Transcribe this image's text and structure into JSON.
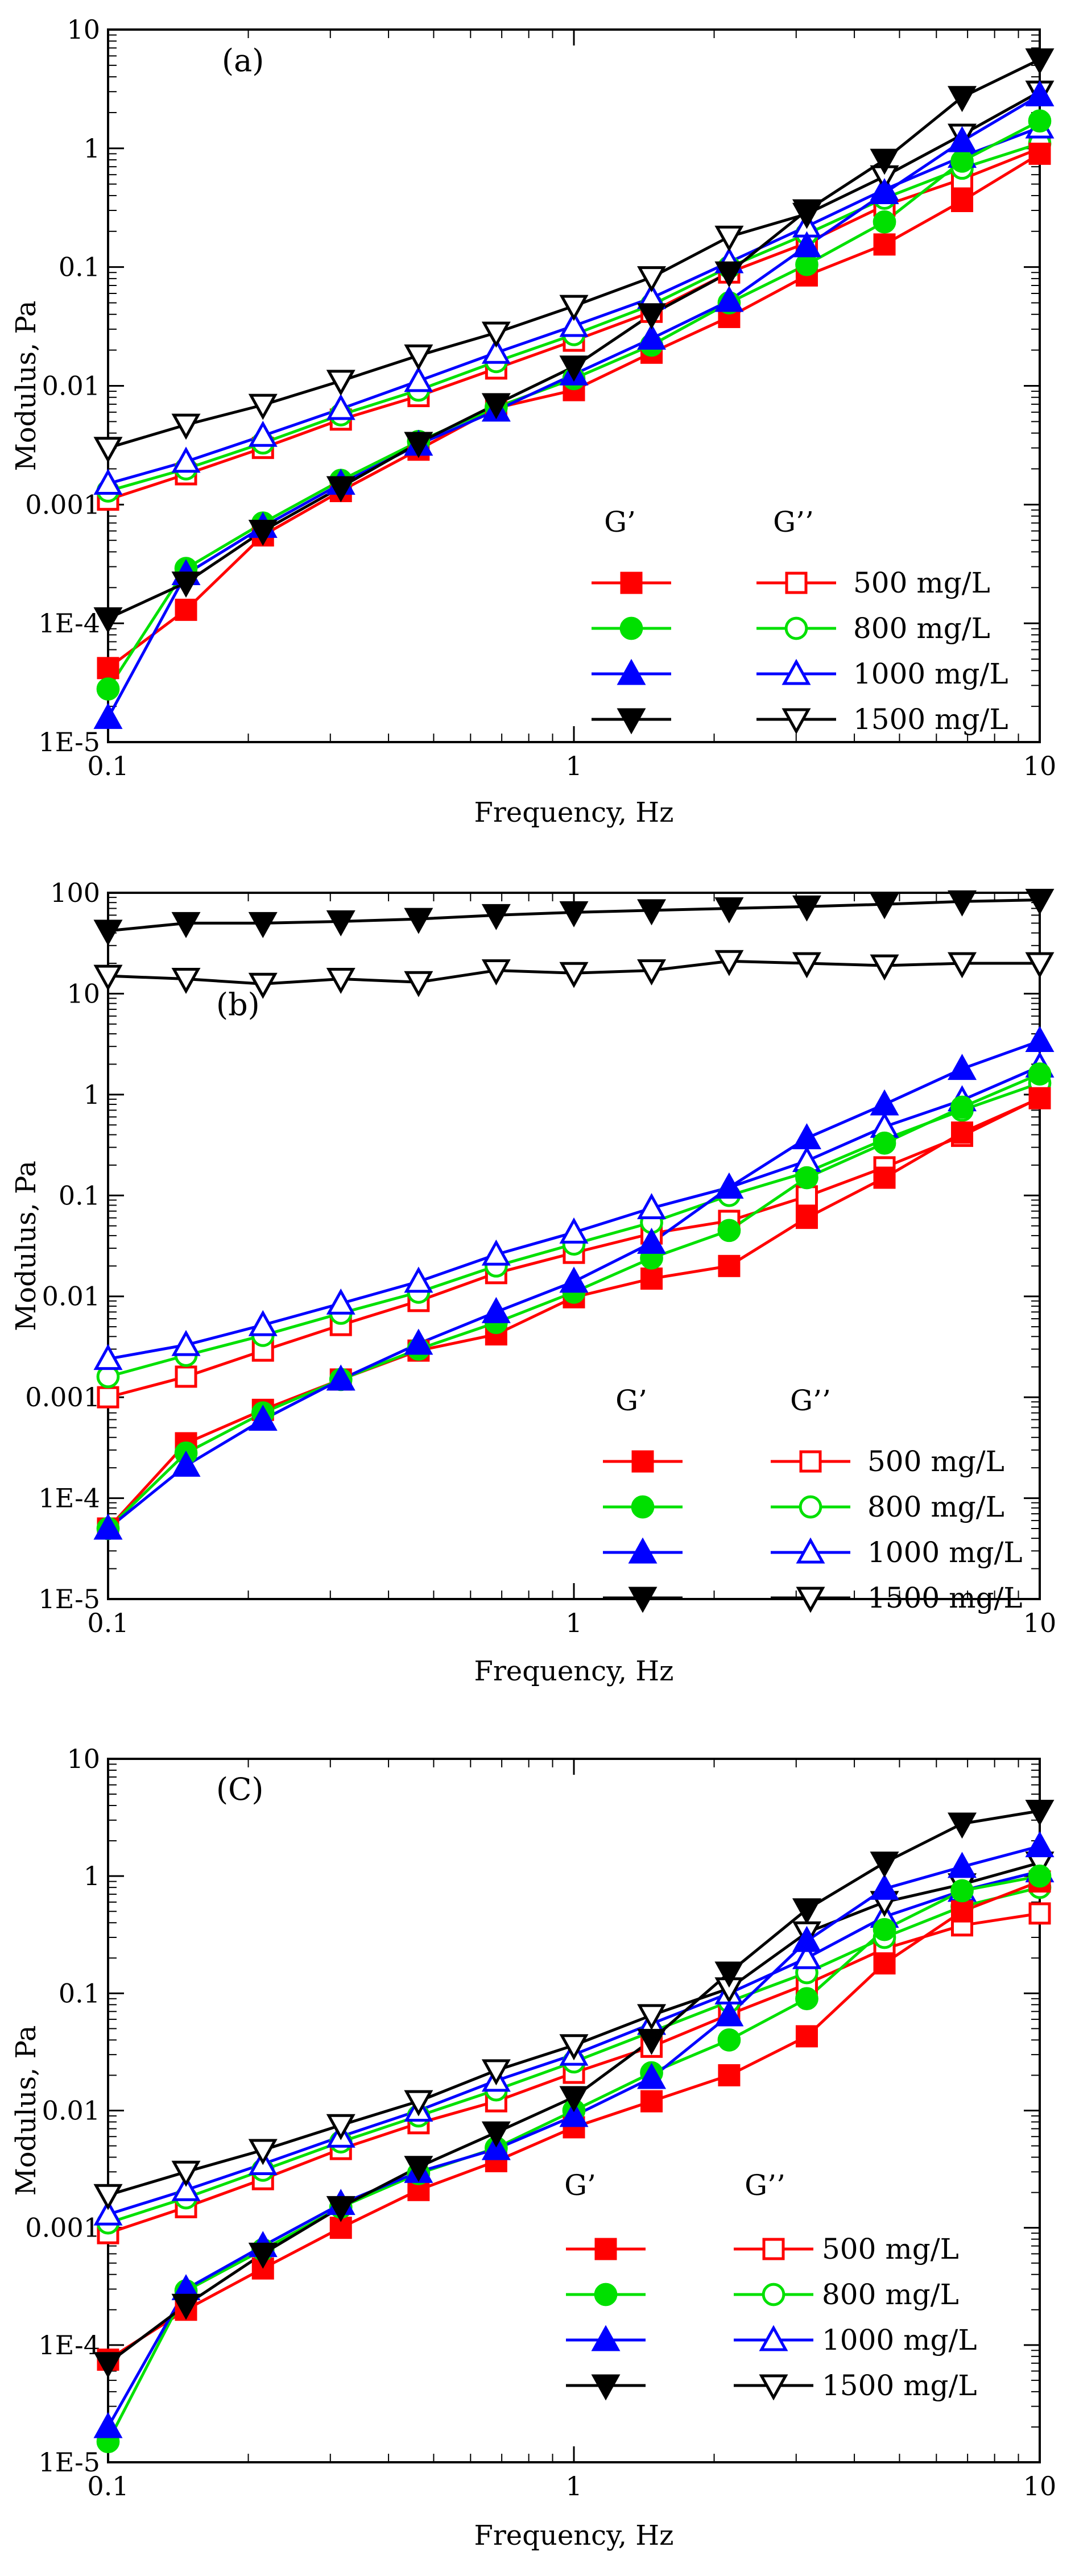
{
  "chart_data": [
    {
      "type": "line",
      "panel_label": "(a)",
      "xscale": "log",
      "yscale": "log",
      "xlabel": "Frequency, Hz",
      "ylabel": "Modulus, Pa",
      "xlim": [
        0.1,
        10
      ],
      "ylim": [
        1e-05,
        10
      ],
      "xticks": [
        0.1,
        1,
        10
      ],
      "xtick_labels": [
        "0.1",
        "1",
        "10"
      ],
      "yticks": [
        1e-05,
        0.0001,
        0.001,
        0.01,
        0.1,
        1,
        10
      ],
      "ytick_labels": [
        "1E-5",
        "1E-4",
        "0.001",
        "0.01",
        "0.1",
        "1",
        "10"
      ],
      "legend_headers": [
        "G’",
        "G’’"
      ],
      "legend_location": "lower-right",
      "x": [
        0.1,
        0.147,
        0.215,
        0.316,
        0.464,
        0.681,
        1.0,
        1.468,
        2.154,
        3.162,
        4.642,
        6.813,
        10.0
      ],
      "series": [
        {
          "name": "500 mg/L",
          "modulus": "G’",
          "color": "#ff0000",
          "marker": "square",
          "filled": true,
          "values": [
            4.2e-05,
            0.00013,
            0.00055,
            0.0013,
            0.0029,
            0.0065,
            0.0092,
            0.019,
            0.038,
            0.085,
            0.155,
            0.36,
            0.9
          ]
        },
        {
          "name": "800 mg/L",
          "modulus": "G’",
          "color": "#00e000",
          "marker": "circle",
          "filled": true,
          "values": [
            2.8e-05,
            0.00029,
            0.0007,
            0.0016,
            0.0034,
            0.0066,
            0.0115,
            0.022,
            0.05,
            0.105,
            0.24,
            0.78,
            1.7
          ]
        },
        {
          "name": "1000 mg/L",
          "modulus": "G’",
          "color": "#0000ff",
          "marker": "triangle-up",
          "filled": true,
          "values": [
            1.6e-05,
            0.00026,
            0.00065,
            0.0015,
            0.0032,
            0.0062,
            0.0125,
            0.025,
            0.052,
            0.15,
            0.42,
            1.15,
            2.8
          ]
        },
        {
          "name": "1500 mg/L",
          "modulus": "G’",
          "color": "#000000",
          "marker": "triangle-down",
          "filled": true,
          "values": [
            0.00011,
            0.00022,
            0.0006,
            0.0014,
            0.0033,
            0.007,
            0.0145,
            0.04,
            0.09,
            0.3,
            0.8,
            2.7,
            5.6
          ]
        },
        {
          "name": "500 mg/L",
          "modulus": "G’’",
          "color": "#ff0000",
          "marker": "square",
          "filled": false,
          "values": [
            0.0011,
            0.0018,
            0.003,
            0.0052,
            0.0082,
            0.014,
            0.024,
            0.042,
            0.09,
            0.16,
            0.33,
            0.55,
            1.0
          ]
        },
        {
          "name": "800 mg/L",
          "modulus": "G’’",
          "color": "#00e000",
          "marker": "circle",
          "filled": false,
          "values": [
            0.0013,
            0.002,
            0.0033,
            0.0057,
            0.0092,
            0.016,
            0.027,
            0.048,
            0.1,
            0.19,
            0.38,
            0.68,
            1.1
          ]
        },
        {
          "name": "1000 mg/L",
          "modulus": "G’’",
          "color": "#0000ff",
          "marker": "triangle-up",
          "filled": false,
          "values": [
            0.0015,
            0.0023,
            0.0038,
            0.0064,
            0.011,
            0.019,
            0.032,
            0.055,
            0.11,
            0.22,
            0.45,
            0.85,
            1.5
          ]
        },
        {
          "name": "1500 mg/L",
          "modulus": "G’’",
          "color": "#000000",
          "marker": "triangle-down",
          "filled": false,
          "values": [
            0.003,
            0.0047,
            0.0069,
            0.011,
            0.018,
            0.028,
            0.047,
            0.082,
            0.18,
            0.28,
            0.58,
            1.3,
            3.0
          ]
        }
      ]
    },
    {
      "type": "line",
      "panel_label": "(b)",
      "xscale": "log",
      "yscale": "log",
      "xlabel": "Frequency, Hz",
      "ylabel": "Modulus, Pa",
      "xlim": [
        0.1,
        10
      ],
      "ylim": [
        1e-05,
        100
      ],
      "xticks": [
        0.1,
        1,
        10
      ],
      "xtick_labels": [
        "0.1",
        "1",
        "10"
      ],
      "yticks": [
        1e-05,
        0.0001,
        0.001,
        0.01,
        0.1,
        1,
        10,
        100
      ],
      "ytick_labels": [
        "1E-5",
        "1E-4",
        "0.001",
        "0.01",
        "0.1",
        "1",
        "10",
        "100"
      ],
      "legend_headers": [
        "G’",
        "G’’"
      ],
      "legend_location": "lower-right",
      "x": [
        0.1,
        0.147,
        0.215,
        0.316,
        0.464,
        0.681,
        1.0,
        1.468,
        2.154,
        3.162,
        4.642,
        6.813,
        10.0
      ],
      "series": [
        {
          "name": "500 mg/L",
          "modulus": "G’",
          "color": "#ff0000",
          "marker": "square",
          "filled": true,
          "values": [
            5e-05,
            0.00035,
            0.00075,
            0.0015,
            0.0029,
            0.0042,
            0.0098,
            0.015,
            0.02,
            0.06,
            0.15,
            0.42,
            0.92
          ]
        },
        {
          "name": "800 mg/L",
          "modulus": "G’",
          "color": "#00e000",
          "marker": "circle",
          "filled": true,
          "values": [
            5e-05,
            0.00028,
            0.0007,
            0.0015,
            0.003,
            0.0055,
            0.011,
            0.024,
            0.045,
            0.15,
            0.33,
            0.75,
            1.6
          ]
        },
        {
          "name": "1000 mg/L",
          "modulus": "G’",
          "color": "#0000ff",
          "marker": "triangle-up",
          "filled": true,
          "values": [
            5e-05,
            0.00021,
            0.0006,
            0.0015,
            0.0034,
            0.007,
            0.014,
            0.034,
            0.12,
            0.37,
            0.8,
            1.8,
            3.4
          ]
        },
        {
          "name": "1500 mg/L",
          "modulus": "G’",
          "color": "#000000",
          "marker": "triangle-down",
          "filled": true,
          "values": [
            42,
            50,
            50,
            52,
            55,
            60,
            64,
            67,
            70,
            73,
            77,
            82,
            85
          ]
        },
        {
          "name": "500 mg/L",
          "modulus": "G’’",
          "color": "#ff0000",
          "marker": "square",
          "filled": false,
          "values": [
            0.001,
            0.0016,
            0.0029,
            0.0052,
            0.009,
            0.017,
            0.027,
            0.042,
            0.056,
            0.098,
            0.19,
            0.39,
            0.93
          ]
        },
        {
          "name": "800 mg/L",
          "modulus": "G’’",
          "color": "#00e000",
          "marker": "circle",
          "filled": false,
          "values": [
            0.0016,
            0.0026,
            0.0041,
            0.0068,
            0.011,
            0.02,
            0.033,
            0.054,
            0.1,
            0.17,
            0.36,
            0.7,
            1.3
          ]
        },
        {
          "name": "1000 mg/L",
          "modulus": "G’’",
          "color": "#0000ff",
          "marker": "triangle-up",
          "filled": false,
          "values": [
            0.0024,
            0.0033,
            0.0052,
            0.0085,
            0.014,
            0.026,
            0.043,
            0.075,
            0.12,
            0.22,
            0.48,
            0.88,
            1.9
          ]
        },
        {
          "name": "1500 mg/L",
          "modulus": "G’’",
          "color": "#000000",
          "marker": "triangle-down",
          "filled": false,
          "values": [
            15,
            14,
            12.5,
            14,
            13,
            17,
            16,
            17,
            21,
            20,
            19,
            20,
            20
          ]
        }
      ]
    },
    {
      "type": "line",
      "panel_label": "(C)",
      "xscale": "log",
      "yscale": "log",
      "xlabel": "Frequency, Hz",
      "ylabel": "Modulus, Pa",
      "xlim": [
        0.1,
        10
      ],
      "ylim": [
        1e-05,
        10
      ],
      "xticks": [
        0.1,
        1,
        10
      ],
      "xtick_labels": [
        "0.1",
        "1",
        "10"
      ],
      "yticks": [
        1e-05,
        0.0001,
        0.001,
        0.01,
        0.1,
        1,
        10
      ],
      "ytick_labels": [
        "1E-5",
        "1E-4",
        "0.001",
        "0.01",
        "0.1",
        "1",
        "10"
      ],
      "legend_headers": [
        "G’",
        "G’’"
      ],
      "legend_location": "lower-right",
      "x": [
        0.1,
        0.147,
        0.215,
        0.316,
        0.464,
        0.681,
        1.0,
        1.468,
        2.154,
        3.162,
        4.642,
        6.813,
        10.0
      ],
      "series": [
        {
          "name": "500 mg/L",
          "modulus": "G’",
          "color": "#ff0000",
          "marker": "square",
          "filled": true,
          "values": [
            7.5e-05,
            0.0002,
            0.00045,
            0.001,
            0.0021,
            0.0037,
            0.0072,
            0.012,
            0.02,
            0.043,
            0.18,
            0.5,
            0.9
          ]
        },
        {
          "name": "800 mg/L",
          "modulus": "G’",
          "color": "#00e000",
          "marker": "circle",
          "filled": true,
          "values": [
            1.5e-05,
            0.00029,
            0.00065,
            0.0015,
            0.0029,
            0.0048,
            0.01,
            0.021,
            0.04,
            0.09,
            0.35,
            0.75,
            1.0
          ]
        },
        {
          "name": "1000 mg/L",
          "modulus": "G’",
          "color": "#0000ff",
          "marker": "triangle-up",
          "filled": true,
          "values": [
            2e-05,
            0.0003,
            0.0007,
            0.0016,
            0.003,
            0.0047,
            0.009,
            0.019,
            0.065,
            0.28,
            0.78,
            1.2,
            1.8
          ]
        },
        {
          "name": "1500 mg/L",
          "modulus": "G’",
          "color": "#000000",
          "marker": "triangle-down",
          "filled": true,
          "values": [
            7e-05,
            0.00022,
            0.0006,
            0.0015,
            0.0033,
            0.0065,
            0.013,
            0.04,
            0.15,
            0.52,
            1.3,
            2.8,
            3.6
          ]
        },
        {
          "name": "500 mg/L",
          "modulus": "G’’",
          "color": "#ff0000",
          "marker": "square",
          "filled": false,
          "values": [
            0.0009,
            0.0015,
            0.0026,
            0.0047,
            0.0078,
            0.012,
            0.021,
            0.035,
            0.066,
            0.12,
            0.24,
            0.38,
            0.48
          ]
        },
        {
          "name": "800 mg/L",
          "modulus": "G’’",
          "color": "#00e000",
          "marker": "circle",
          "filled": false,
          "values": [
            0.0011,
            0.0018,
            0.0031,
            0.0054,
            0.009,
            0.015,
            0.026,
            0.047,
            0.085,
            0.15,
            0.3,
            0.55,
            0.8
          ]
        },
        {
          "name": "1000 mg/L",
          "modulus": "G’’",
          "color": "#0000ff",
          "marker": "triangle-up",
          "filled": false,
          "values": [
            0.0013,
            0.0021,
            0.0035,
            0.006,
            0.01,
            0.018,
            0.03,
            0.055,
            0.1,
            0.2,
            0.45,
            0.75,
            1.1
          ]
        },
        {
          "name": "1500 mg/L",
          "modulus": "G’’",
          "color": "#000000",
          "marker": "triangle-down",
          "filled": false,
          "values": [
            0.0019,
            0.003,
            0.0046,
            0.0075,
            0.012,
            0.022,
            0.036,
            0.065,
            0.11,
            0.33,
            0.6,
            0.85,
            1.3
          ]
        }
      ]
    }
  ]
}
